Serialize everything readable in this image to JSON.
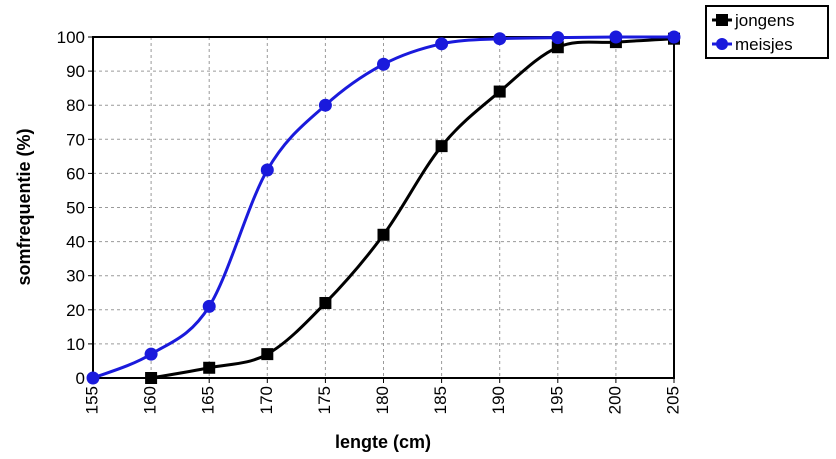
{
  "chart_data": {
    "type": "line",
    "xlabel": "lengte (cm)",
    "ylabel": "somfrequentie (%)",
    "xlim": [
      155,
      205
    ],
    "ylim": [
      0,
      100
    ],
    "xticks": [
      "155",
      "160",
      "165",
      "170",
      "175",
      "180",
      "185",
      "190",
      "195",
      "200",
      "205"
    ],
    "yticks": [
      "0",
      "10",
      "20",
      "30",
      "40",
      "50",
      "60",
      "70",
      "80",
      "90",
      "100"
    ],
    "grid": true,
    "legend_position": "top-right outside",
    "series": [
      {
        "name": "jongens",
        "color": "#000000",
        "marker": "square",
        "x": [
          160,
          165,
          170,
          175,
          180,
          185,
          190,
          195,
          200,
          205
        ],
        "y": [
          0,
          3,
          7,
          22,
          42,
          68,
          84,
          97,
          98.5,
          99.5
        ]
      },
      {
        "name": "meisjes",
        "color": "#1a1adc",
        "marker": "circle",
        "x": [
          155,
          160,
          165,
          170,
          175,
          180,
          185,
          190,
          195,
          200,
          205
        ],
        "y": [
          0,
          7,
          21,
          61,
          80,
          92,
          98,
          99.5,
          99.8,
          100,
          100
        ]
      }
    ]
  }
}
